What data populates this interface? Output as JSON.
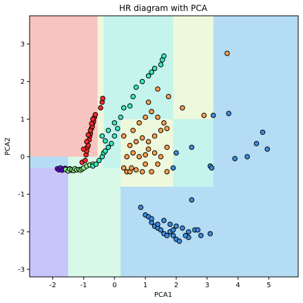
{
  "chart_data": {
    "type": "scatter",
    "title": "HR diagram with PCA",
    "xlabel": "PCA1",
    "ylabel": "PCA2",
    "xlim": [
      -2.75,
      5.95
    ],
    "ylim": [
      -3.2,
      3.75
    ],
    "xticks": [
      "-2",
      "-1",
      "0",
      "1",
      "2",
      "3",
      "4",
      "5"
    ],
    "xtick_values": [
      -2,
      -1,
      0,
      1,
      2,
      3,
      4,
      5
    ],
    "yticks": [
      "-3",
      "-2",
      "-1",
      "0",
      "1",
      "2",
      "3"
    ],
    "ytick_values": [
      -3,
      -2,
      -1,
      0,
      1,
      2,
      3
    ],
    "grid": false,
    "regions": [
      {
        "class": "blue",
        "color": "#b4dcf4",
        "x": [
          -2.75,
          5.95
        ],
        "y": [
          -3.2,
          3.75
        ]
      },
      {
        "class": "cyan",
        "color": "#c4f4ec",
        "x": [
          -0.35,
          3.2
        ],
        "y": [
          -0.8,
          3.75
        ]
      },
      {
        "class": "cyan",
        "color": "#c4f4ec",
        "x": [
          -0.35,
          3.2
        ],
        "y": [
          -0.8,
          3.75
        ]
      },
      {
        "class": "mint",
        "color": "#d8f8e8",
        "x": [
          -1.5,
          -0.35
        ],
        "y": [
          -3.2,
          0.0
        ]
      },
      {
        "class": "mint",
        "color": "#d8f8e8",
        "x": [
          -1.5,
          0.2
        ],
        "y": [
          -3.2,
          -0.3
        ]
      },
      {
        "class": "cream",
        "color": "#eef8dc",
        "x": [
          0.2,
          1.9
        ],
        "y": [
          -0.8,
          1.0
        ]
      },
      {
        "class": "cream",
        "color": "#eef8dc",
        "x": [
          1.9,
          3.2
        ],
        "y": [
          1.0,
          3.75
        ]
      },
      {
        "class": "cream",
        "color": "#eef8dc",
        "x": [
          -0.55,
          -0.35
        ],
        "y": [
          0.0,
          3.75
        ]
      },
      {
        "class": "red",
        "color": "#f8c4c0",
        "x": [
          -2.75,
          -0.55
        ],
        "y": [
          0.0,
          3.75
        ]
      },
      {
        "class": "purple",
        "color": "#c8c4fc",
        "x": [
          -2.75,
          -1.5
        ],
        "y": [
          -3.2,
          -0.3
        ]
      }
    ],
    "series": [
      {
        "color": "#8000ff",
        "points": [
          [
            -1.85,
            -0.32
          ],
          [
            -1.8,
            -0.35
          ],
          [
            -1.75,
            -0.3
          ],
          [
            -1.7,
            -0.36
          ],
          [
            -1.65,
            -0.33
          ],
          [
            -1.6,
            -0.31
          ],
          [
            -1.55,
            -0.35
          ],
          [
            -1.5,
            -0.34
          ],
          [
            -1.45,
            -0.32
          ],
          [
            -1.4,
            -0.36
          ]
        ]
      },
      {
        "color": "#8cf58c",
        "points": [
          [
            -1.58,
            -0.34
          ],
          [
            -1.5,
            -0.38
          ],
          [
            -1.45,
            -0.33
          ],
          [
            -1.38,
            -0.35
          ],
          [
            -1.32,
            -0.37
          ],
          [
            -1.28,
            -0.32
          ],
          [
            -1.22,
            -0.35
          ],
          [
            -1.15,
            -0.34
          ],
          [
            -1.1,
            -0.36
          ],
          [
            -1.05,
            -0.33
          ],
          [
            -1.0,
            -0.3
          ],
          [
            -0.9,
            -0.25
          ],
          [
            -0.8,
            -0.22
          ],
          [
            -0.7,
            -0.2
          ]
        ]
      },
      {
        "color": "#ff2a2a",
        "points": [
          [
            -1.05,
            -0.15
          ],
          [
            -0.95,
            -0.1
          ],
          [
            -0.92,
            0.05
          ],
          [
            -0.9,
            0.15
          ],
          [
            -0.88,
            0.25
          ],
          [
            -0.85,
            0.3
          ],
          [
            -0.82,
            0.45
          ],
          [
            -0.8,
            0.55
          ],
          [
            -0.78,
            0.62
          ],
          [
            -0.75,
            0.75
          ],
          [
            -0.72,
            0.8
          ],
          [
            -0.7,
            0.9
          ],
          [
            -0.68,
            0.95
          ],
          [
            -0.65,
            1.05
          ],
          [
            -0.62,
            1.12
          ],
          [
            -0.45,
            1.3
          ],
          [
            -0.4,
            1.45
          ],
          [
            -0.38,
            1.55
          ],
          [
            -1.0,
            0.2
          ],
          [
            -0.9,
            0.4
          ],
          [
            -0.85,
            0.58
          ],
          [
            -0.78,
            0.7
          ],
          [
            -0.74,
            0.88
          ],
          [
            -0.7,
            1.0
          ]
        ]
      },
      {
        "color": "#3ee8c0",
        "points": [
          [
            -0.7,
            -0.25
          ],
          [
            -0.6,
            -0.2
          ],
          [
            -0.5,
            -0.1
          ],
          [
            -0.4,
            0.0
          ],
          [
            -0.35,
            0.1
          ],
          [
            -0.3,
            0.15
          ],
          [
            -0.2,
            0.25
          ],
          [
            -0.1,
            0.35
          ],
          [
            0.0,
            0.55
          ],
          [
            -0.4,
            0.55
          ],
          [
            -0.2,
            0.7
          ],
          [
            0.0,
            0.9
          ],
          [
            0.2,
            1.05
          ],
          [
            0.3,
            1.3
          ],
          [
            0.5,
            1.35
          ],
          [
            0.6,
            1.6
          ],
          [
            0.7,
            1.85
          ],
          [
            0.9,
            2.0
          ],
          [
            1.1,
            2.15
          ],
          [
            1.2,
            2.25
          ],
          [
            1.3,
            2.35
          ],
          [
            1.5,
            2.45
          ],
          [
            1.55,
            2.58
          ],
          [
            1.6,
            2.68
          ],
          [
            -0.3,
            0.42
          ],
          [
            0.1,
            0.75
          ]
        ]
      },
      {
        "color": "#ffa050",
        "points": [
          [
            0.3,
            -0.3
          ],
          [
            0.4,
            -0.4
          ],
          [
            0.5,
            -0.4
          ],
          [
            0.55,
            -0.3
          ],
          [
            0.7,
            -0.35
          ],
          [
            0.9,
            -0.4
          ],
          [
            1.2,
            -0.4
          ],
          [
            1.7,
            -0.4
          ],
          [
            0.4,
            0.0
          ],
          [
            0.6,
            0.1
          ],
          [
            0.8,
            0.0
          ],
          [
            1.0,
            0.05
          ],
          [
            1.1,
            0.2
          ],
          [
            1.3,
            0.1
          ],
          [
            1.5,
            0.0
          ],
          [
            1.7,
            0.25
          ],
          [
            0.5,
            0.3
          ],
          [
            0.7,
            0.4
          ],
          [
            0.9,
            0.5
          ],
          [
            1.1,
            0.4
          ],
          [
            1.3,
            0.55
          ],
          [
            1.5,
            0.7
          ],
          [
            1.7,
            0.75
          ],
          [
            0.3,
            0.55
          ],
          [
            0.6,
            0.7
          ],
          [
            0.8,
            0.9
          ],
          [
            1.0,
            1.05
          ],
          [
            1.2,
            1.2
          ],
          [
            1.4,
            1.05
          ],
          [
            1.6,
            0.9
          ],
          [
            1.1,
            1.45
          ],
          [
            1.4,
            1.8
          ],
          [
            1.75,
            1.6
          ],
          [
            2.2,
            1.3
          ],
          [
            2.9,
            1.1
          ],
          [
            3.65,
            2.75
          ],
          [
            1.0,
            -0.2
          ],
          [
            1.4,
            -0.2
          ]
        ]
      },
      {
        "color": "#3c8ee0",
        "points": [
          [
            0.85,
            -1.35
          ],
          [
            1.0,
            -1.55
          ],
          [
            1.1,
            -1.6
          ],
          [
            1.2,
            -1.75
          ],
          [
            1.3,
            -1.85
          ],
          [
            1.4,
            -1.9
          ],
          [
            1.5,
            -1.95
          ],
          [
            1.6,
            -2.05
          ],
          [
            1.7,
            -2.1
          ],
          [
            1.8,
            -2.0
          ],
          [
            1.9,
            -2.1
          ],
          [
            2.0,
            -2.2
          ],
          [
            2.1,
            -2.25
          ],
          [
            1.6,
            -1.7
          ],
          [
            1.8,
            -1.8
          ],
          [
            2.0,
            -1.85
          ],
          [
            1.9,
            -1.95
          ],
          [
            2.2,
            -1.9
          ],
          [
            2.4,
            -2.0
          ],
          [
            2.6,
            -1.95
          ],
          [
            2.7,
            -1.95
          ],
          [
            2.8,
            -2.1
          ],
          [
            3.1,
            -2.05
          ],
          [
            2.5,
            -1.15
          ],
          [
            2.4,
            -2.15
          ],
          [
            2.3,
            -2.1
          ],
          [
            3.1,
            -0.25
          ],
          [
            3.15,
            -0.3
          ],
          [
            3.2,
            1.1
          ],
          [
            3.7,
            1.15
          ],
          [
            3.9,
            -0.05
          ],
          [
            4.3,
            0.0
          ],
          [
            4.6,
            0.35
          ],
          [
            4.8,
            0.65
          ],
          [
            4.95,
            0.2
          ],
          [
            2.5,
            0.25
          ],
          [
            2.0,
            0.1
          ],
          [
            1.9,
            -0.3
          ],
          [
            1.4,
            -1.8
          ],
          [
            1.2,
            -1.65
          ]
        ]
      }
    ]
  }
}
